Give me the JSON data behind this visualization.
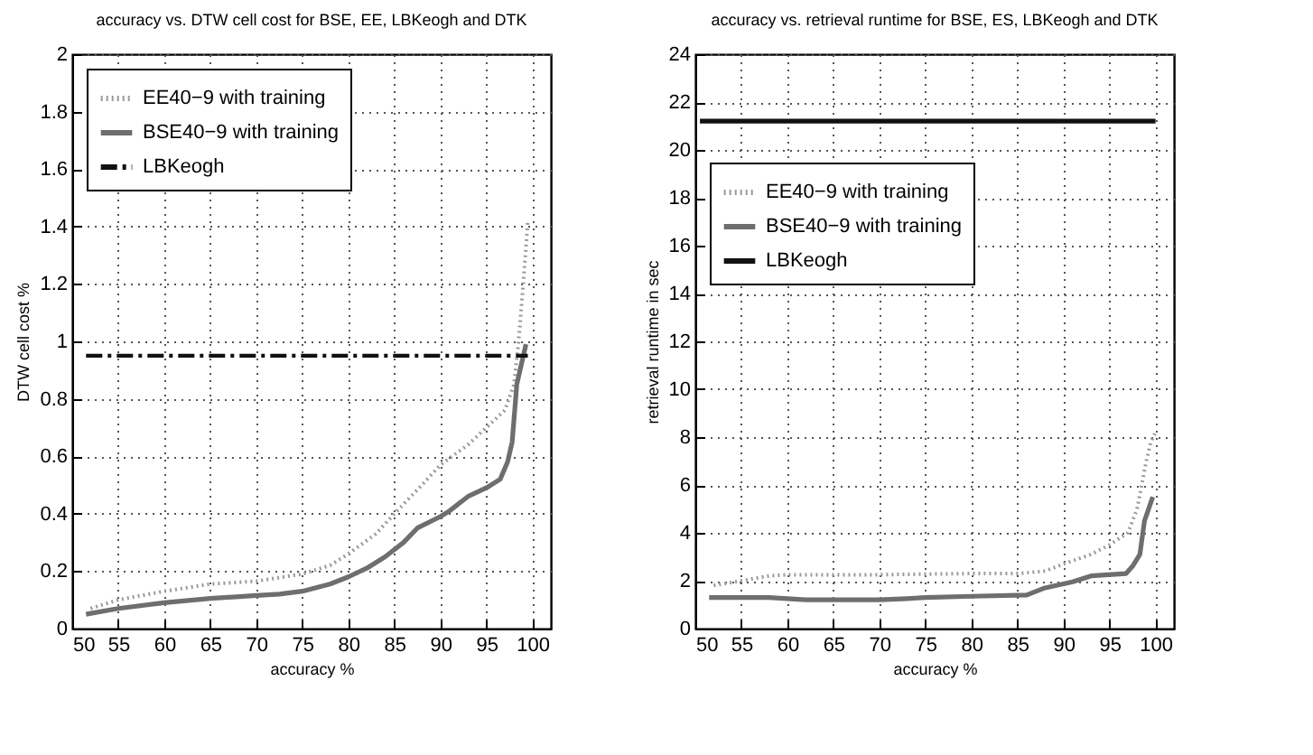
{
  "chart_data": [
    {
      "type": "line",
      "title": "accuracy vs. DTW cell cost for BSE, EE, LBKeogh and DTK",
      "xlabel": "accuracy %",
      "ylabel": "DTW cell cost %",
      "xlim": [
        50,
        102
      ],
      "xticks": [
        50,
        55,
        60,
        65,
        70,
        75,
        80,
        85,
        90,
        95,
        100
      ],
      "ylim": [
        0,
        2
      ],
      "yticks": [
        0,
        0.2,
        0.4,
        0.6,
        0.8,
        1,
        1.2,
        1.4,
        1.6,
        1.8,
        2
      ],
      "grid": true,
      "legend": "top left",
      "marker": "none",
      "series": [
        {
          "name": "EE40−9 with training",
          "color": "#9a9a9a",
          "line_style": "dotted",
          "x": [
            52,
            55,
            60,
            65,
            70,
            75,
            78,
            80,
            83,
            85,
            88,
            90,
            93,
            95,
            97,
            98,
            98.5,
            99,
            99.5
          ],
          "values": [
            0.07,
            0.1,
            0.13,
            0.155,
            0.165,
            0.19,
            0.22,
            0.26,
            0.33,
            0.4,
            0.5,
            0.57,
            0.64,
            0.7,
            0.76,
            0.85,
            1.0,
            1.2,
            1.42
          ]
        },
        {
          "name": "BSE40−9 with training",
          "color": "#6e6e6e",
          "line_style": "solid",
          "x": [
            51.5,
            55,
            60,
            65,
            70,
            72.5,
            75,
            78,
            80,
            82,
            84,
            86,
            87.5,
            90,
            91,
            93,
            95,
            96.5,
            97.3,
            97.8,
            98.3,
            99.3
          ],
          "values": [
            0.05,
            0.07,
            0.09,
            0.105,
            0.115,
            0.12,
            0.13,
            0.155,
            0.18,
            0.21,
            0.25,
            0.3,
            0.35,
            0.39,
            0.41,
            0.46,
            0.49,
            0.52,
            0.58,
            0.65,
            0.85,
            0.99
          ]
        },
        {
          "name": "LBKeogh",
          "color": "#111111",
          "line_style": "dashed",
          "x": [
            51.5,
            99.5
          ],
          "values": [
            0.95,
            0.95
          ]
        }
      ]
    },
    {
      "type": "line",
      "title": "accuracy vs. retrieval runtime for BSE, ES, LBKeogh and DTK",
      "xlabel": "accuracy %",
      "ylabel": "retrieval runtime in sec",
      "xlim": [
        50,
        102
      ],
      "xticks": [
        50,
        55,
        60,
        65,
        70,
        75,
        80,
        85,
        90,
        95,
        100
      ],
      "ylim": [
        0,
        24
      ],
      "yticks": [
        0,
        2,
        4,
        6,
        8,
        10,
        12,
        14,
        16,
        18,
        20,
        22,
        24
      ],
      "grid": true,
      "legend": "left",
      "marker": "none",
      "series": [
        {
          "name": "EE40−9 with training",
          "color": "#9a9a9a",
          "line_style": "dotted",
          "x": [
            52,
            55,
            58,
            60,
            70,
            80,
            85,
            88,
            90,
            93,
            95,
            97,
            98,
            98.5,
            99,
            99.5,
            100
          ],
          "values": [
            1.8,
            2.0,
            2.2,
            2.25,
            2.25,
            2.3,
            2.3,
            2.4,
            2.7,
            3.1,
            3.5,
            4.0,
            5,
            6,
            7,
            7.8,
            8.2
          ]
        },
        {
          "name": "BSE40−9 with training",
          "color": "#6e6e6e",
          "line_style": "solid",
          "x": [
            51.5,
            55,
            58,
            62,
            70,
            73,
            75,
            80,
            86,
            88,
            91,
            93,
            96.8,
            97.5,
            98.3,
            98.8,
            99.7
          ],
          "values": [
            1.3,
            1.3,
            1.3,
            1.2,
            1.2,
            1.25,
            1.3,
            1.35,
            1.4,
            1.7,
            1.95,
            2.2,
            2.3,
            2.6,
            3.1,
            4.5,
            5.5
          ]
        },
        {
          "name": "LBKeogh",
          "color": "#111111",
          "line_style": "solid",
          "x": [
            50.5,
            100
          ],
          "values": [
            21.2,
            21.2
          ]
        }
      ]
    }
  ]
}
